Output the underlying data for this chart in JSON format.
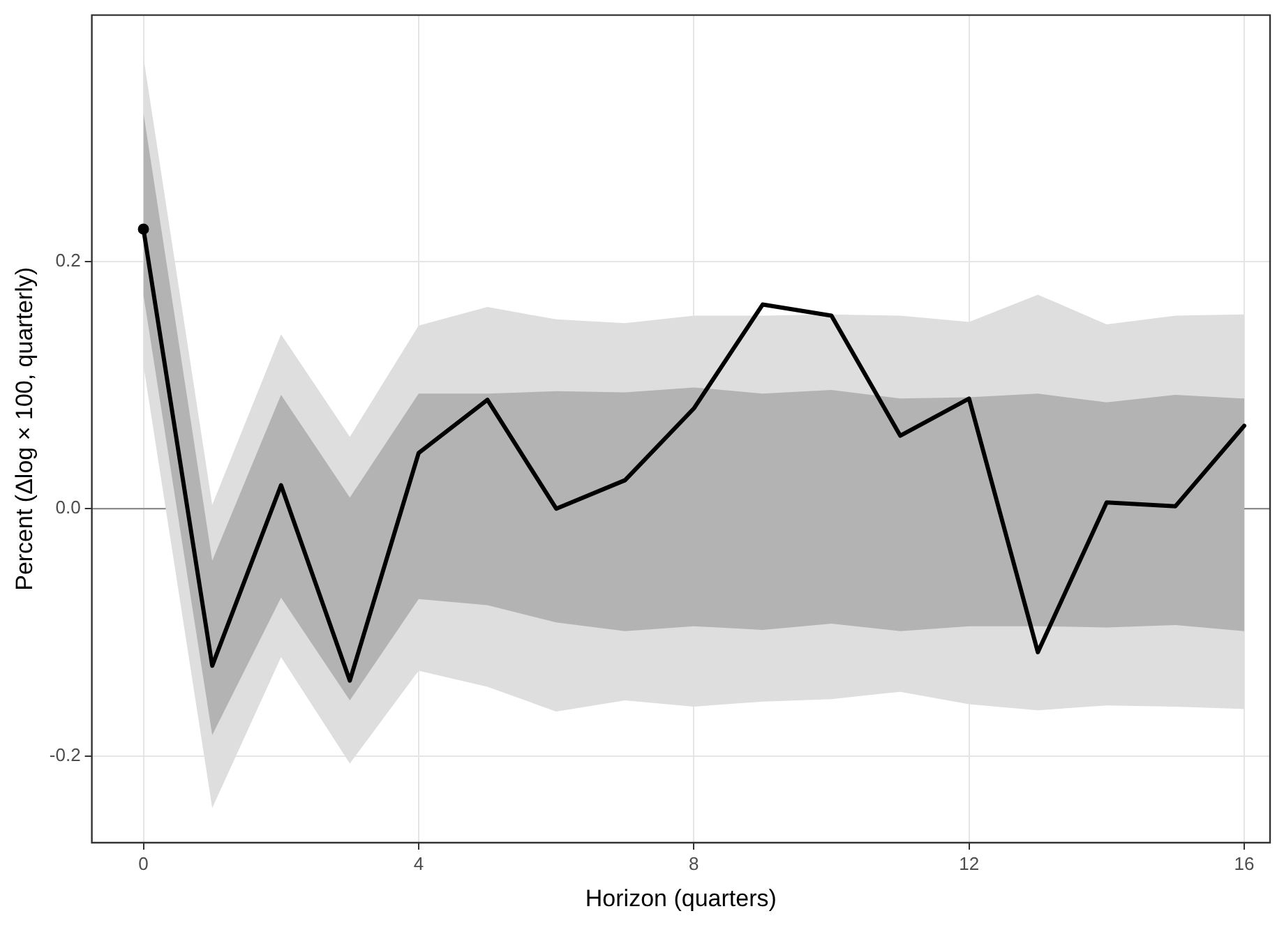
{
  "chart_data": {
    "type": "line",
    "xlabel": "Horizon (quarters)",
    "ylabel": "Percent (Δlog × 100, quarterly)",
    "x": [
      0,
      1,
      2,
      3,
      4,
      5,
      6,
      7,
      8,
      9,
      10,
      11,
      12,
      13,
      14,
      15,
      16
    ],
    "xlim": [
      -0.75,
      16.375
    ],
    "xticks": [
      0,
      4,
      8,
      12,
      16
    ],
    "ylim": [
      -0.27,
      0.399
    ],
    "yticks": [
      {
        "value": -0.2,
        "label": "-0.2"
      },
      {
        "value": 0,
        "label": "0.0"
      },
      {
        "value": 0.2,
        "label": "0.2"
      }
    ],
    "grid": true,
    "legend": false,
    "marker": "none",
    "line_style": "solid",
    "ref_lines": [
      {
        "axis": "y",
        "value": 0,
        "color": "#808080"
      }
    ],
    "series": [
      {
        "type": "area",
        "color": "#dedede",
        "values": [
          null,
          null,
          null,
          null,
          null,
          null,
          null,
          null,
          null,
          null,
          null,
          null,
          null,
          null,
          null,
          null,
          null
        ],
        "lower": [
          0.116,
          -0.242,
          -0.12,
          -0.206,
          -0.131,
          -0.144,
          -0.164,
          -0.155,
          -0.16,
          -0.156,
          -0.154,
          -0.148,
          -0.158,
          -0.163,
          -0.159,
          -0.16,
          -0.162
        ],
        "upper": [
          0.365,
          0.003,
          0.141,
          0.058,
          0.148,
          0.163,
          0.153,
          0.15,
          0.156,
          0.156,
          0.157,
          0.156,
          0.151,
          0.173,
          0.149,
          0.156,
          0.157
        ]
      },
      {
        "type": "area",
        "color": "#b3b3b3",
        "values": [
          null,
          null,
          null,
          null,
          null,
          null,
          null,
          null,
          null,
          null,
          null,
          null,
          null,
          null,
          null,
          null,
          null
        ],
        "lower": [
          0.173,
          -0.183,
          -0.072,
          -0.155,
          -0.073,
          -0.078,
          -0.092,
          -0.099,
          -0.095,
          -0.098,
          -0.093,
          -0.099,
          -0.095,
          -0.095,
          -0.096,
          -0.094,
          -0.099
        ],
        "upper": [
          0.32,
          -0.042,
          0.092,
          0.009,
          0.093,
          0.093,
          0.095,
          0.094,
          0.098,
          0.093,
          0.096,
          0.089,
          0.09,
          0.093,
          0.086,
          0.092,
          0.089
        ]
      },
      {
        "type": "line",
        "color": "#000000",
        "values": [
          0.226,
          -0.127,
          0.019,
          -0.139,
          0.045,
          0.088,
          0,
          0.023,
          0.081,
          0.165,
          0.156,
          0.059,
          0.089,
          -0.116,
          0.005,
          0.002,
          0.067
        ]
      },
      {
        "type": "scatter",
        "color": "#000000",
        "marker": "circle",
        "x": [
          0
        ],
        "values": [
          0.226
        ]
      }
    ]
  }
}
